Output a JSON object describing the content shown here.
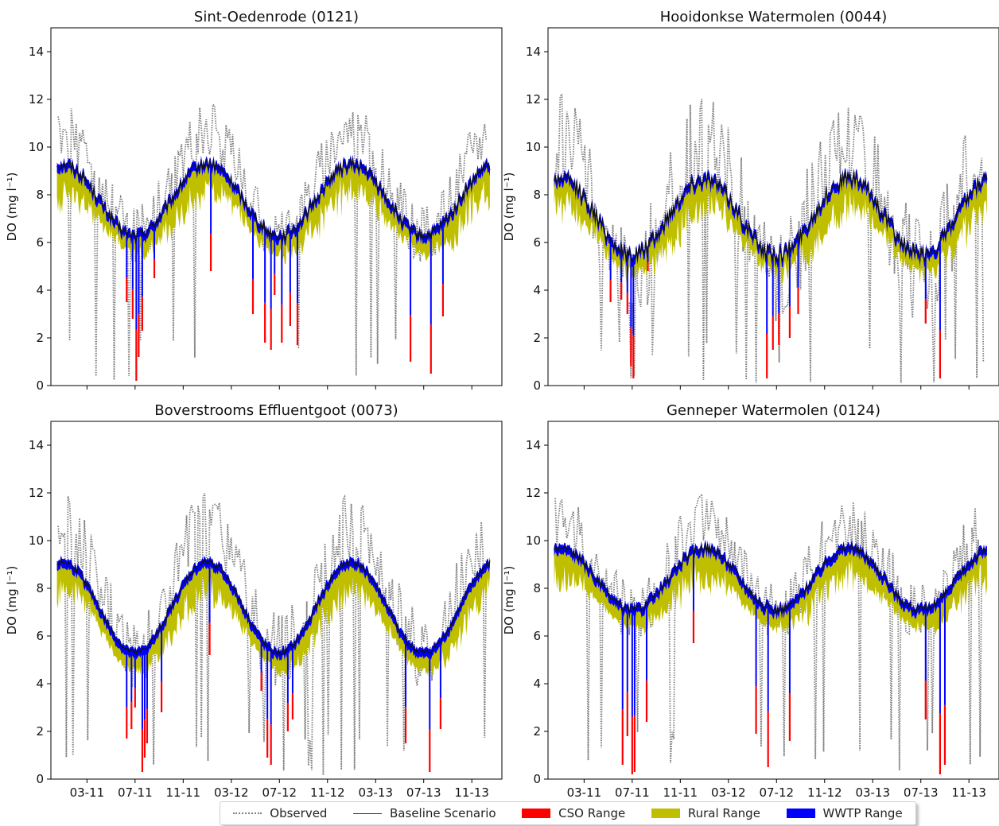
{
  "chart_data": [
    {
      "type": "line",
      "title": "Sint-Oedenrode (0121)",
      "ylabel": "DO (mg l⁻¹)",
      "ylim": [
        0,
        15
      ],
      "yticks": [
        0,
        2,
        4,
        6,
        8,
        10,
        12,
        14
      ],
      "xtick_labels": [],
      "baseline": {
        "base": 7.8,
        "amp": 1.5,
        "peak_month": 13,
        "noise": 0.25
      },
      "observed": {
        "base": 8.3,
        "amp": 2.2,
        "spread": 1.2
      },
      "dips": [
        {
          "month": 6.3,
          "value": 3.5
        },
        {
          "month": 6.8,
          "value": 2.8
        },
        {
          "month": 7.1,
          "value": 0.2
        },
        {
          "month": 7.3,
          "value": 1.2
        },
        {
          "month": 7.6,
          "value": 2.3
        },
        {
          "month": 8.6,
          "value": 4.5
        },
        {
          "month": 13.3,
          "value": 4.8
        },
        {
          "month": 16.8,
          "value": 3.0
        },
        {
          "month": 17.8,
          "value": 1.8
        },
        {
          "month": 18.3,
          "value": 1.5
        },
        {
          "month": 18.6,
          "value": 3.8
        },
        {
          "month": 19.2,
          "value": 1.8
        },
        {
          "month": 19.9,
          "value": 2.5
        },
        {
          "month": 20.5,
          "value": 1.7
        },
        {
          "month": 29.9,
          "value": 1.0
        },
        {
          "month": 31.6,
          "value": 0.5
        },
        {
          "month": 32.6,
          "value": 2.9
        }
      ]
    },
    {
      "type": "line",
      "title": "Hooidonkse Watermolen (0044)",
      "ylabel": "DO (mg l⁻¹)",
      "ylim": [
        0,
        15
      ],
      "yticks": [
        0,
        2,
        4,
        6,
        8,
        10,
        12,
        14
      ],
      "xtick_labels": [],
      "baseline": {
        "base": 7.1,
        "amp": 1.6,
        "peak_month": 13,
        "noise": 0.35
      },
      "observed": {
        "base": 7.0,
        "amp": 2.6,
        "spread": 2.3
      },
      "dips": [
        {
          "month": 5.2,
          "value": 3.5
        },
        {
          "month": 6.1,
          "value": 3.6
        },
        {
          "month": 6.6,
          "value": 3.0
        },
        {
          "month": 6.9,
          "value": 0.8
        },
        {
          "month": 7.1,
          "value": 0.3
        },
        {
          "month": 8.3,
          "value": 4.8
        },
        {
          "month": 18.2,
          "value": 0.3
        },
        {
          "month": 18.7,
          "value": 1.5
        },
        {
          "month": 19.2,
          "value": 1.7
        },
        {
          "month": 20.1,
          "value": 2.0
        },
        {
          "month": 20.8,
          "value": 3.0
        },
        {
          "month": 31.4,
          "value": 2.6
        },
        {
          "month": 32.6,
          "value": 0.3
        }
      ]
    },
    {
      "type": "line",
      "title": "Boverstrooms Effluentgoot (0073)",
      "ylabel": "DO (mg l⁻¹)",
      "ylim": [
        0,
        15
      ],
      "yticks": [
        0,
        2,
        4,
        6,
        8,
        10,
        12,
        14
      ],
      "xtick_labels": [
        "03-11",
        "07-11",
        "11-11",
        "03-12",
        "07-12",
        "11-12",
        "03-13",
        "07-13",
        "11-13"
      ],
      "baseline": {
        "base": 7.2,
        "amp": 1.9,
        "peak_month": 13,
        "noise": 0.15
      },
      "observed": {
        "base": 7.6,
        "amp": 2.6,
        "spread": 1.6
      },
      "dips": [
        {
          "month": 6.3,
          "value": 1.7
        },
        {
          "month": 6.7,
          "value": 2.1
        },
        {
          "month": 7.0,
          "value": 3.0
        },
        {
          "month": 7.6,
          "value": 0.3
        },
        {
          "month": 7.8,
          "value": 0.9
        },
        {
          "month": 8.0,
          "value": 1.5
        },
        {
          "month": 9.2,
          "value": 2.8
        },
        {
          "month": 13.2,
          "value": 5.2
        },
        {
          "month": 17.5,
          "value": 3.7
        },
        {
          "month": 18.0,
          "value": 0.9
        },
        {
          "month": 18.3,
          "value": 0.6
        },
        {
          "month": 19.7,
          "value": 2.0
        },
        {
          "month": 20.1,
          "value": 2.5
        },
        {
          "month": 29.5,
          "value": 1.5
        },
        {
          "month": 31.5,
          "value": 0.3
        },
        {
          "month": 32.4,
          "value": 2.1
        }
      ]
    },
    {
      "type": "line",
      "title": "Genneper Watermolen (0124)",
      "ylabel": "DO (mg l⁻¹)",
      "ylim": [
        0,
        15
      ],
      "yticks": [
        0,
        2,
        4,
        6,
        8,
        10,
        12,
        14
      ],
      "xtick_labels": [
        "03-11",
        "07-11",
        "11-11",
        "03-12",
        "07-12",
        "11-12",
        "03-13",
        "07-13",
        "11-13"
      ],
      "baseline": {
        "base": 8.4,
        "amp": 1.3,
        "peak_month": 13,
        "noise": 0.2
      },
      "observed": {
        "base": 8.6,
        "amp": 1.8,
        "spread": 1.3
      },
      "dips": [
        {
          "month": 6.2,
          "value": 0.6
        },
        {
          "month": 6.6,
          "value": 1.8
        },
        {
          "month": 7.0,
          "value": 0.2
        },
        {
          "month": 7.2,
          "value": 0.3
        },
        {
          "month": 8.2,
          "value": 2.4
        },
        {
          "month": 12.1,
          "value": 5.7
        },
        {
          "month": 17.3,
          "value": 1.9
        },
        {
          "month": 18.3,
          "value": 0.5
        },
        {
          "month": 20.1,
          "value": 1.6
        },
        {
          "month": 31.4,
          "value": 2.5
        },
        {
          "month": 32.6,
          "value": 0.2
        },
        {
          "month": 33.0,
          "value": 0.6
        }
      ]
    }
  ],
  "x_axis": {
    "start_date": "2010-12",
    "end_date": "2014-01"
  },
  "series_styles": {
    "observed": "#808080",
    "baseline": "#111111",
    "cso": "#ff0000",
    "rural": "#bfbf00",
    "wwtp": "#0000ff"
  },
  "legend": {
    "observed": "Observed",
    "baseline": "Baseline Scenario",
    "cso": "CSO Range",
    "rural": "Rural Range",
    "wwtp": "WWTP Range"
  }
}
